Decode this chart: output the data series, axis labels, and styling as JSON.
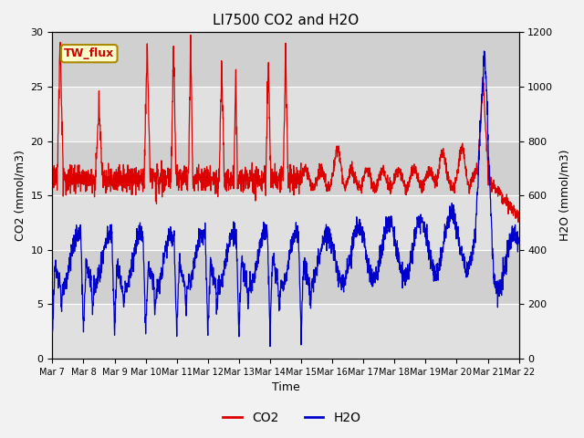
{
  "title": "LI7500 CO2 and H2O",
  "xlabel": "Time",
  "ylabel_left": "CO2 (mmol/m3)",
  "ylabel_right": "H2O (mmol/m3)",
  "annotation": "TW_flux",
  "annotation_color": "#cc0000",
  "annotation_bg": "#ffffcc",
  "co2_color": "#dd0000",
  "h2o_color": "#0000cc",
  "ylim_left": [
    0,
    30
  ],
  "ylim_right": [
    0,
    1200
  ],
  "bg_light": "#d8d8d8",
  "bg_dark": "#c8c8c8",
  "legend_co2": "CO2",
  "legend_h2o": "H2O",
  "title_fontsize": 11,
  "tick_fontsize": 8,
  "label_fontsize": 9
}
